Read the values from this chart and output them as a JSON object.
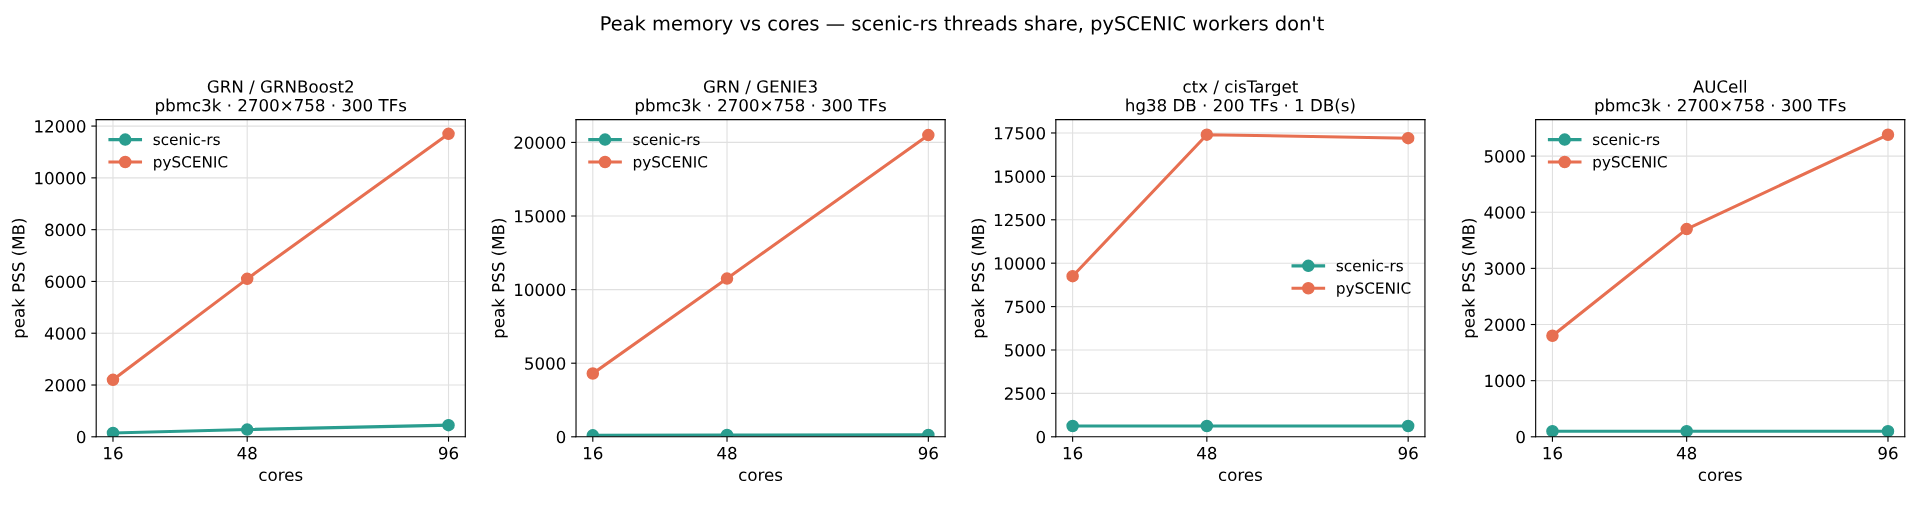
{
  "chart_data": [
    {
      "type": "line",
      "title": "GRN / GRNBoost2\npbmc3k · 2700×758 · 300 TFs",
      "xlabel": "cores",
      "ylabel": "peak PSS (MB)",
      "x": [
        16,
        48,
        96
      ],
      "xlim": [
        12,
        100
      ],
      "xticks": [
        16,
        48,
        96
      ],
      "ylim": [
        0,
        12250
      ],
      "yticks": [
        0,
        2000,
        4000,
        6000,
        8000,
        10000,
        12000
      ],
      "grid": true,
      "legend": "top left",
      "marker": "circle",
      "series": [
        {
          "name": "scenic-rs",
          "color": "#2a9d8f",
          "values": [
            150,
            280,
            450
          ]
        },
        {
          "name": "pySCENIC",
          "color": "#e76f51",
          "values": [
            2200,
            6100,
            11700
          ]
        }
      ],
      "annotations": [
        "Peak memory vs cores — scenic-rs threads share, pySCENIC workers don't"
      ]
    },
    {
      "type": "line",
      "title": "GRN / GENIE3\npbmc3k · 2700×758 · 300 TFs",
      "xlabel": "cores",
      "ylabel": "peak PSS (MB)",
      "x": [
        16,
        48,
        96
      ],
      "xlim": [
        12,
        100
      ],
      "xticks": [
        16,
        48,
        96
      ],
      "ylim": [
        0,
        21550
      ],
      "yticks": [
        0,
        5000,
        10000,
        15000,
        20000
      ],
      "grid": true,
      "legend": "top left",
      "marker": "circle",
      "series": [
        {
          "name": "scenic-rs",
          "color": "#2a9d8f",
          "values": [
            100,
            120,
            130
          ]
        },
        {
          "name": "pySCENIC",
          "color": "#e76f51",
          "values": [
            4300,
            10750,
            20500
          ]
        }
      ]
    },
    {
      "type": "line",
      "title": "ctx / cisTarget\nhg38 DB · 200 TFs · 1 DB(s)",
      "xlabel": "cores",
      "ylabel": "peak PSS (MB)",
      "x": [
        16,
        48,
        96
      ],
      "xlim": [
        12,
        100
      ],
      "xticks": [
        16,
        48,
        96
      ],
      "ylim": [
        0,
        18270
      ],
      "yticks": [
        0,
        2500,
        5000,
        7500,
        10000,
        12500,
        15000,
        17500
      ],
      "grid": true,
      "legend": "right",
      "marker": "circle",
      "series": [
        {
          "name": "scenic-rs",
          "color": "#2a9d8f",
          "values": [
            620,
            620,
            620
          ]
        },
        {
          "name": "pySCENIC",
          "color": "#e76f51",
          "values": [
            9250,
            17400,
            17200
          ]
        }
      ]
    },
    {
      "type": "line",
      "title": "AUCell\npbmc3k · 2700×758 · 300 TFs",
      "xlabel": "cores",
      "ylabel": "peak PSS (MB)",
      "x": [
        16,
        48,
        96
      ],
      "xlim": [
        12,
        100
      ],
      "xticks": [
        16,
        48,
        96
      ],
      "ylim": [
        0,
        5650
      ],
      "yticks": [
        0,
        1000,
        2000,
        3000,
        4000,
        5000
      ],
      "grid": true,
      "legend": "top left",
      "marker": "circle",
      "series": [
        {
          "name": "scenic-rs",
          "color": "#2a9d8f",
          "values": [
            100,
            100,
            100
          ]
        },
        {
          "name": "pySCENIC",
          "color": "#e76f51",
          "values": [
            1800,
            3700,
            5380
          ]
        }
      ]
    }
  ]
}
